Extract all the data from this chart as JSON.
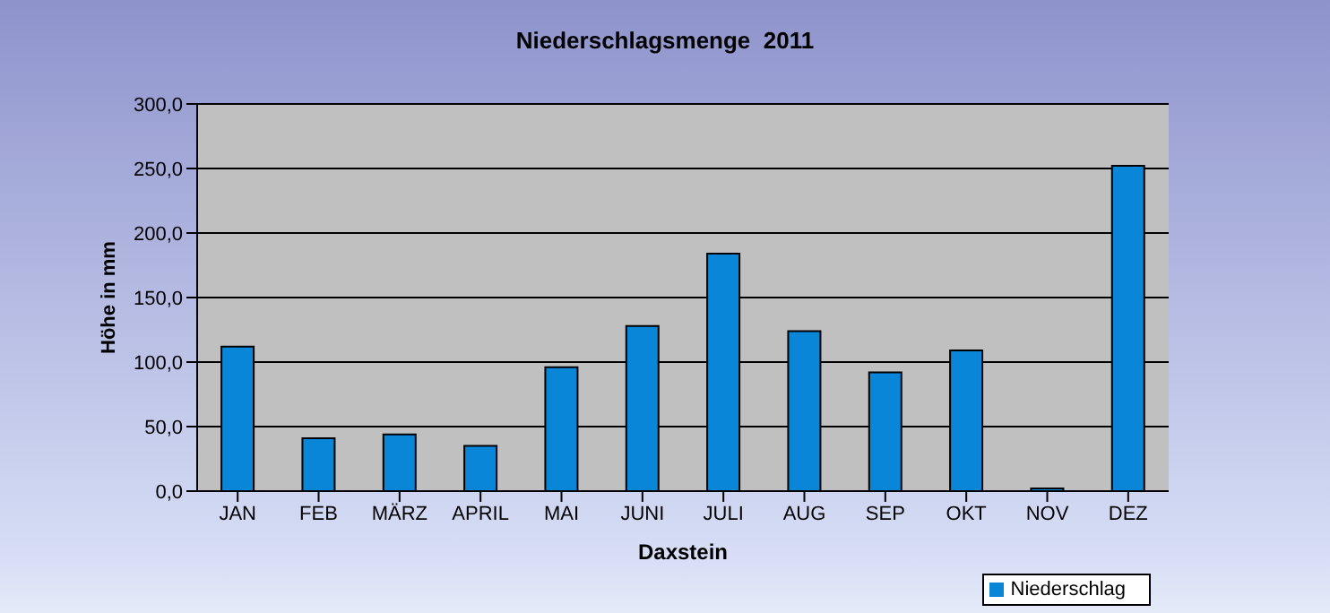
{
  "chart_data": {
    "type": "bar",
    "title": "Niederschlagsmenge  2011",
    "xlabel": "Daxstein",
    "ylabel": "Höhe in mm",
    "categories": [
      "JAN",
      "FEB",
      "MÄRZ",
      "APRIL",
      "MAI",
      "JUNI",
      "JULI",
      "AUG",
      "SEP",
      "OKT",
      "NOV",
      "DEZ"
    ],
    "series": [
      {
        "name": "Niederschlag",
        "color": "#0a86d8",
        "values": [
          112,
          41,
          44,
          35,
          96,
          128,
          184,
          124,
          92,
          109,
          2,
          252
        ]
      }
    ],
    "ylim": [
      0,
      300
    ],
    "yticks": [
      {
        "value": 0,
        "label": "0,0"
      },
      {
        "value": 50,
        "label": "50,0"
      },
      {
        "value": 100,
        "label": "100,0"
      },
      {
        "value": 150,
        "label": "150,0"
      },
      {
        "value": 200,
        "label": "200,0"
      },
      {
        "value": 250,
        "label": "250,0"
      },
      {
        "value": 300,
        "label": "300,0"
      }
    ],
    "grid": "y",
    "legend": "bottom right"
  }
}
